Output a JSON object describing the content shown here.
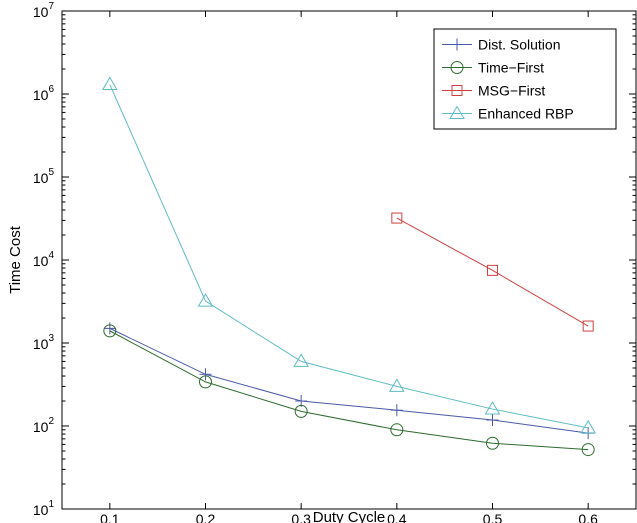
{
  "chart_data": {
    "type": "line",
    "title": "",
    "xlabel": "Duty Cycle",
    "ylabel": "Time Cost",
    "yscale": "log",
    "xlim": [
      0.05,
      0.65
    ],
    "ylim": [
      10,
      10000000
    ],
    "grid": false,
    "legend_position": "top-right",
    "x_ticks": [
      "0.1",
      "0.2",
      "0.3",
      "0.4",
      "0.5",
      "0.6"
    ],
    "y_ticks": [
      {
        "base": "10",
        "exp": "1"
      },
      {
        "base": "10",
        "exp": "2"
      },
      {
        "base": "10",
        "exp": "3"
      },
      {
        "base": "10",
        "exp": "4"
      },
      {
        "base": "10",
        "exp": "5"
      },
      {
        "base": "10",
        "exp": "6"
      },
      {
        "base": "10",
        "exp": "7"
      }
    ],
    "series": [
      {
        "name": "Dist. Solution",
        "color": "#4a5aa8",
        "marker": "plus",
        "x": [
          0.1,
          0.2,
          0.3,
          0.4,
          0.5,
          0.6
        ],
        "y": [
          1500,
          420,
          200,
          155,
          118,
          82
        ]
      },
      {
        "name": "Time−First",
        "color": "#2d6b2d",
        "marker": "circle",
        "x": [
          0.1,
          0.2,
          0.3,
          0.4,
          0.5,
          0.6
        ],
        "y": [
          1400,
          340,
          150,
          90,
          62,
          52
        ]
      },
      {
        "name": "MSG−First",
        "color": "#d04040",
        "marker": "square",
        "x": [
          0.4,
          0.5,
          0.6
        ],
        "y": [
          32000,
          7500,
          1600
        ]
      },
      {
        "name": "Enhanced RBP",
        "color": "#5fbcc4",
        "marker": "triangle",
        "x": [
          0.1,
          0.2,
          0.3,
          0.4,
          0.5,
          0.6
        ],
        "y": [
          1300000,
          3200,
          600,
          300,
          160,
          95
        ]
      }
    ]
  }
}
